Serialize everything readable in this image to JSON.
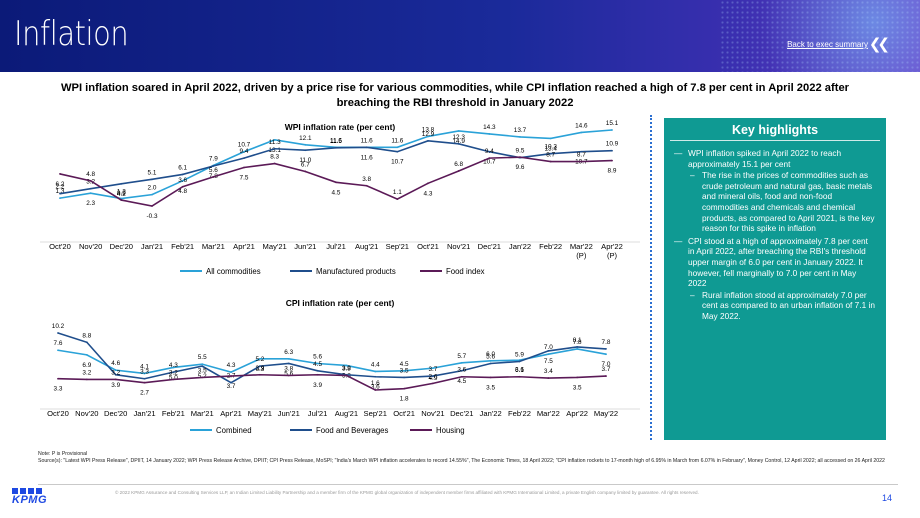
{
  "header": {
    "title": "Inflation",
    "back_link": "Back to exec summary",
    "back_icon": "double-chevron-left-icon"
  },
  "headline": "WPI inflation soared in April 2022, driven by a price rise for various commodities, while CPI inflation reached a high of 7.8 per cent in April 2022 after breaching the RBI threshold in January 2022",
  "colors": {
    "header_bg": "#0b1a78",
    "series_light_blue": "#2aa2d8",
    "series_dark_blue": "#1f4e8c",
    "series_purple": "#5b1a57",
    "highlight_box": "#0f9a93",
    "accent_blue": "#1e49e2"
  },
  "chart_data": [
    {
      "type": "line",
      "title": "WPI inflation rate (per cent)",
      "categories": [
        "Oct'20",
        "Nov'20",
        "Dec'20",
        "Jan'21",
        "Feb'21",
        "Mar'21",
        "Apr'21",
        "May'21",
        "Jun'21",
        "Jul'21",
        "Aug'21",
        "Sep'21",
        "Oct'21",
        "Nov'21",
        "Dec'21",
        "Jan'22",
        "Feb'22",
        "Mar'22",
        "Apr'22"
      ],
      "category_suffix": [
        "",
        "",
        "",
        "",
        "",
        "",
        "",
        "",
        "",
        "",
        "",
        "",
        "",
        "",
        "",
        "",
        "",
        "(P)",
        "(P)"
      ],
      "series": [
        {
          "name": "All commodities",
          "values": [
            1.3,
            2.3,
            1.2,
            2.0,
            4.8,
            7.9,
            10.7,
            13.1,
            12.1,
            11.6,
            11.6,
            11.6,
            13.8,
            14.9,
            14.3,
            13.7,
            13.4,
            14.6,
            15.1
          ]
        },
        {
          "name": "Manufactured products",
          "values": [
            2.2,
            3.2,
            4.2,
            5.1,
            6.1,
            7.8,
            9.4,
            11.3,
            11.0,
            11.5,
            11.6,
            10.7,
            12.9,
            12.3,
            10.7,
            9.5,
            10.3,
            10.7,
            10.9
          ]
        },
        {
          "name": "Food index",
          "values": [
            6.2,
            4.8,
            0.9,
            -0.3,
            3.6,
            5.6,
            7.5,
            8.3,
            6.7,
            4.5,
            3.8,
            1.1,
            4.3,
            6.8,
            9.4,
            9.6,
            8.7,
            8.7,
            8.9
          ]
        }
      ],
      "legend": "bottom"
    },
    {
      "type": "line",
      "title": "CPI inflation rate (per cent)",
      "categories": [
        "Oct'20",
        "Nov'20",
        "Dec'20",
        "Jan'21",
        "Feb'21",
        "Mar'21",
        "Apr'21",
        "May'21",
        "Jun'21",
        "Jul'21",
        "Aug'21",
        "Sep'21",
        "Oct'21",
        "Nov'21",
        "Dec'21",
        "Jan'22",
        "Feb'22",
        "Mar'22",
        "Apr'22",
        "May'22"
      ],
      "series": [
        {
          "name": "Combined",
          "values": [
            7.6,
            6.9,
            4.6,
            4.1,
            5.0,
            5.5,
            4.3,
            6.3,
            6.3,
            5.6,
            5.3,
            4.4,
            4.5,
            4.9,
            5.7,
            6.0,
            6.1,
            7.0,
            7.8,
            7.0
          ]
        },
        {
          "name": "Food and Beverages",
          "values": [
            10.2,
            8.8,
            3.9,
            3.3,
            4.3,
            5.2,
            2.7,
            5.2,
            5.6,
            4.5,
            3.9,
            3.6,
            3.5,
            3.7,
            4.5,
            5.6,
            5.9,
            7.5,
            8.1,
            7.8
          ]
        },
        {
          "name": "Housing",
          "values": [
            3.3,
            3.2,
            3.2,
            2.7,
            3.2,
            3.5,
            3.7,
            3.9,
            3.8,
            3.9,
            3.8,
            1.6,
            1.8,
            2.6,
            3.6,
            3.5,
            3.6,
            3.4,
            3.5,
            3.7
          ]
        }
      ],
      "legend": "bottom"
    }
  ],
  "key_highlights": {
    "title": "Key highlights",
    "items": [
      {
        "dash": "—",
        "text": "WPI inflation spiked in April 2022 to reach approximately 15.1 per cent",
        "sub": [
          {
            "dash": "–",
            "text": "The rise in the prices of commodities such as crude petroleum and natural gas, basic metals and mineral oils, food and non-food commodities and chemicals and chemical products, as compared to April 2021, is the key reason for this spike in inflation"
          }
        ]
      },
      {
        "dash": "—",
        "text": "CPI stood at a high of approximately 7.8 per cent in April 2022, after breaching the RBI's threshold upper margin of 6.0 per cent in January 2022. It however, fell marginally to 7.0 per cent in May 2022",
        "sub": [
          {
            "dash": "–",
            "text": "Rural inflation stood at approximately 7.0 per cent as compared to an urban inflation of 7.1 in May 2022."
          }
        ]
      }
    ]
  },
  "note": "Note: P is Provisional",
  "source": "Source(s): \"Latest WPI Press Release\", DPIIT, 14 January 2022; WPI Press Release Archive, DPIIT; CPI Press Release, MoSPI; \"India's March WPI inflation accelerates to record 14.55%\", The Economic Times, 18 April 2022; \"CPI inflation rockets to 17-month high of 6.95% in March from 6.07% in February\", Money Control, 12 April 2022; all accessed on 26 April 2022",
  "footer": {
    "copyright": "© 2022 KPMG Assurance and Consulting Services LLP, an Indian Limited Liability Partnership and a member firm of the KPMG global organization of independent member firms affiliated with KPMG International Limited, a private English company limited by guarantee. All rights reserved.",
    "page_number": "14",
    "logo": "KPMG"
  }
}
